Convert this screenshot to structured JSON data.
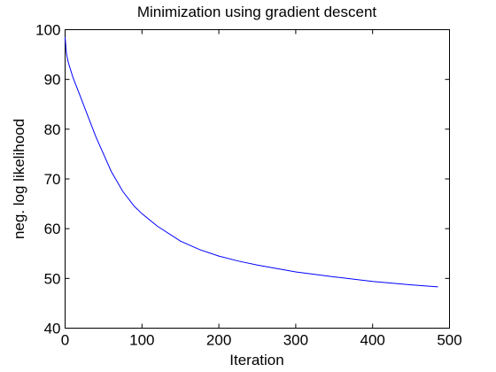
{
  "chart_data": {
    "type": "line",
    "title": "Minimization using gradient descent",
    "xlabel": "Iteration",
    "ylabel": "neg. log likelihood",
    "xlim": [
      0,
      500
    ],
    "ylim": [
      40,
      100
    ],
    "xticks": [
      "0",
      "100",
      "200",
      "300",
      "400",
      "500"
    ],
    "yticks": [
      "40",
      "50",
      "60",
      "70",
      "80",
      "90",
      "100"
    ],
    "grid": false,
    "legend": "none",
    "series": [
      {
        "color": "#0000ff",
        "x": [
          0,
          1,
          2,
          4,
          6,
          10,
          15,
          20,
          30,
          40,
          50,
          60,
          75,
          90,
          100,
          120,
          150,
          175,
          200,
          225,
          250,
          275,
          300,
          350,
          400,
          450,
          485
        ],
        "y": [
          98.5,
          96.5,
          95.0,
          93.5,
          92.5,
          90.5,
          88.5,
          86.5,
          82.5,
          78.5,
          75.0,
          71.5,
          67.5,
          64.5,
          63.0,
          60.5,
          57.5,
          55.8,
          54.5,
          53.5,
          52.7,
          52.0,
          51.3,
          50.3,
          49.4,
          48.7,
          48.3
        ]
      }
    ]
  }
}
